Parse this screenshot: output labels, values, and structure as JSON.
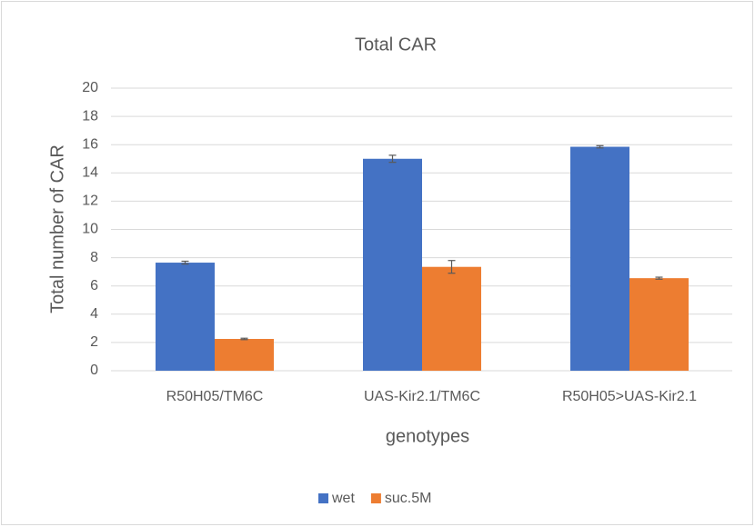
{
  "chart_data": {
    "type": "bar",
    "title": "Total CAR",
    "x_label": "genotypes",
    "y_label": "Total  number of CAR",
    "categories": [
      "R50H05/TM6C",
      "UAS-Kir2.1/TM6C",
      "R50H05>UAS-Kir2.1"
    ],
    "series": [
      {
        "name": "wet",
        "color": "#4472c4",
        "values": [
          7.65,
          15.0,
          15.85
        ],
        "errors": [
          0.1,
          0.25,
          0.08
        ]
      },
      {
        "name": "suc.5M",
        "color": "#ed7d31",
        "values": [
          2.25,
          7.35,
          6.55
        ],
        "errors": [
          0.05,
          0.45,
          0.07
        ]
      }
    ],
    "ylim": [
      0,
      20
    ],
    "yticks": [
      0,
      2,
      4,
      6,
      8,
      10,
      12,
      14,
      16,
      18,
      20
    ],
    "grid": true,
    "legend": "bottom"
  }
}
